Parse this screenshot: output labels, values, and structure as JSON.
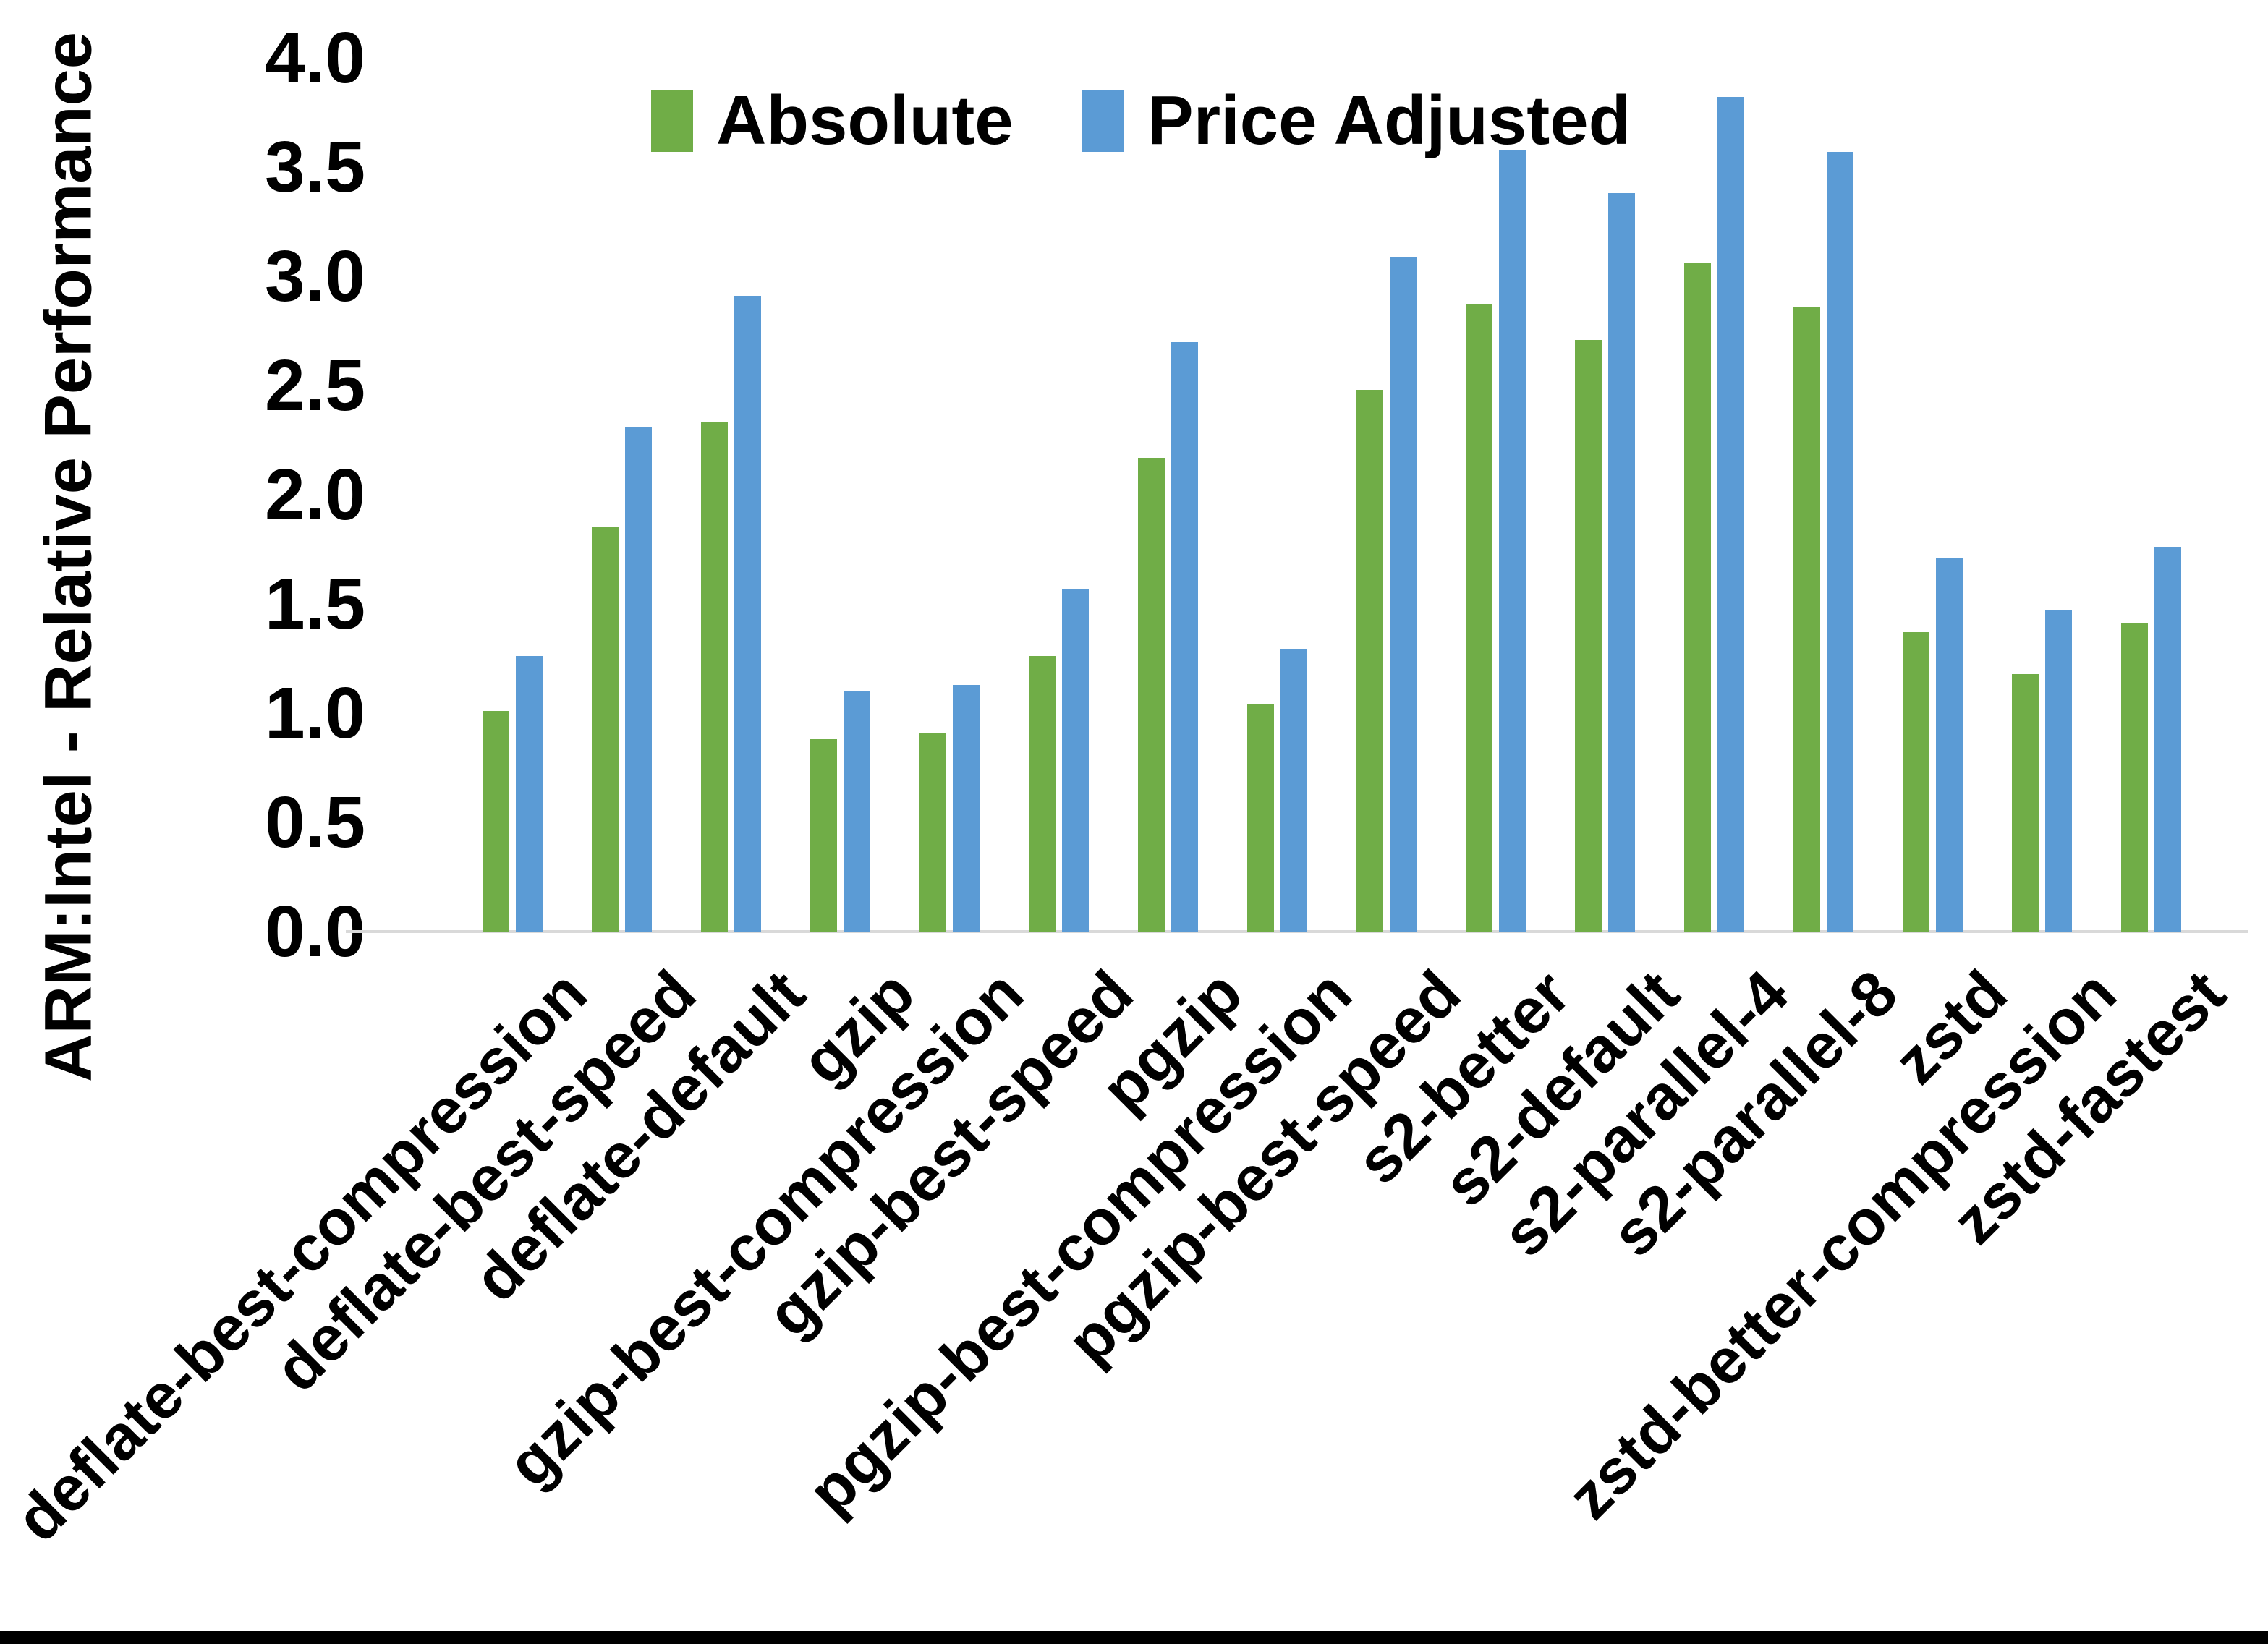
{
  "chart_data": {
    "type": "bar",
    "title": "",
    "xlabel": "",
    "ylabel": "ARM:Intel - Relative Performance",
    "ylim": [
      0.0,
      4.0
    ],
    "ytick_step": 0.5,
    "yticks": [
      "4.0",
      "3.5",
      "3.0",
      "2.5",
      "2.0",
      "1.5",
      "1.0",
      "0.5",
      "0.0"
    ],
    "grid": false,
    "legend_position": "top-center",
    "categories": [
      "deflate-best-compression",
      "deflate-best-speed",
      "deflate-default",
      "gzip",
      "gzip-best-compression",
      "gzip-best-speed",
      "pgzip",
      "pgzip-best-compression",
      "pgzip-best-speed",
      "s2-better",
      "s2-default",
      "s2-parallel-4",
      "s2-parallel-8",
      "zstd",
      "zstd-better-compression",
      "zstd-fastest"
    ],
    "series": [
      {
        "name": "Absolute",
        "color": "#70AD47",
        "values": [
          1.01,
          1.85,
          2.33,
          0.88,
          0.91,
          1.26,
          2.17,
          1.04,
          2.48,
          2.87,
          2.71,
          3.06,
          2.86,
          1.37,
          1.18,
          1.41
        ]
      },
      {
        "name": "Price Adjusted",
        "color": "#5B9BD5",
        "values": [
          1.26,
          2.31,
          2.91,
          1.1,
          1.13,
          1.57,
          2.7,
          1.29,
          3.09,
          3.58,
          3.38,
          3.82,
          3.57,
          1.71,
          1.47,
          1.76
        ]
      }
    ]
  },
  "colors": {
    "background": "#FFFFFF",
    "axis_line": "#D9D9D9",
    "text": "#000000",
    "bottom_bar": "#000000"
  }
}
